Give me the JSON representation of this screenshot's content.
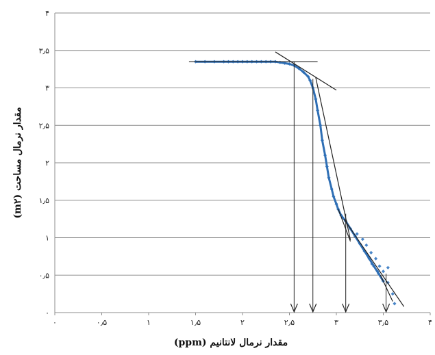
{
  "chart_data": {
    "type": "scatter",
    "xlabel": "مقدار نرمال لانتانیم (ppm)",
    "ylabel": "مقدار نرمال مساحت (m۲)",
    "xlim": [
      0,
      4
    ],
    "ylim": [
      0,
      4
    ],
    "x_ticks": [
      {
        "v": 0,
        "t": "۰"
      },
      {
        "v": 0.5,
        "t": "۰٫۵"
      },
      {
        "v": 1,
        "t": "۱"
      },
      {
        "v": 1.5,
        "t": "۱٫۵"
      },
      {
        "v": 2,
        "t": "۲"
      },
      {
        "v": 2.5,
        "t": "۲٫۵"
      },
      {
        "v": 3,
        "t": "۳"
      },
      {
        "v": 3.5,
        "t": "۳٫۵"
      },
      {
        "v": 4,
        "t": "۴"
      }
    ],
    "y_ticks": [
      {
        "v": 0,
        "t": "۰"
      },
      {
        "v": 0.5,
        "t": "۰٫۵"
      },
      {
        "v": 1,
        "t": "۱"
      },
      {
        "v": 1.5,
        "t": "۱٫۵"
      },
      {
        "v": 2,
        "t": "۲"
      },
      {
        "v": 2.5,
        "t": "۲٫۵"
      },
      {
        "v": 3,
        "t": "۳"
      },
      {
        "v": 3.5,
        "t": "۳٫۵"
      },
      {
        "v": 4,
        "t": "۴"
      }
    ],
    "grid": "horizontal",
    "marker_color": "#4a86c8",
    "curve_color": "#2f6fb5",
    "series": [
      {
        "points": [
          [
            1.5,
            3.35
          ],
          [
            1.6,
            3.35
          ],
          [
            1.7,
            3.35
          ],
          [
            1.8,
            3.35
          ],
          [
            1.85,
            3.35
          ],
          [
            1.9,
            3.35
          ],
          [
            1.95,
            3.35
          ],
          [
            2.0,
            3.35
          ],
          [
            2.05,
            3.35
          ],
          [
            2.1,
            3.35
          ],
          [
            2.15,
            3.35
          ],
          [
            2.2,
            3.35
          ],
          [
            2.25,
            3.35
          ],
          [
            2.3,
            3.35
          ],
          [
            2.35,
            3.35
          ],
          [
            2.4,
            3.34
          ],
          [
            2.45,
            3.33
          ],
          [
            2.5,
            3.32
          ],
          [
            2.55,
            3.3
          ],
          [
            2.6,
            3.26
          ],
          [
            2.65,
            3.21
          ],
          [
            2.7,
            3.15
          ],
          [
            2.72,
            3.1
          ],
          [
            2.75,
            3.0
          ],
          [
            2.78,
            2.85
          ],
          [
            2.8,
            2.7
          ],
          [
            2.83,
            2.5
          ],
          [
            2.85,
            2.3
          ],
          [
            2.88,
            2.1
          ],
          [
            2.9,
            1.95
          ],
          [
            2.92,
            1.8
          ],
          [
            2.95,
            1.65
          ],
          [
            2.97,
            1.55
          ],
          [
            3.0,
            1.45
          ],
          [
            3.02,
            1.38
          ],
          [
            3.05,
            1.3
          ],
          [
            3.1,
            1.22
          ],
          [
            3.15,
            1.12
          ],
          [
            3.2,
            1.02
          ],
          [
            3.25,
            0.92
          ],
          [
            3.3,
            0.82
          ],
          [
            3.35,
            0.72
          ],
          [
            3.4,
            0.62
          ],
          [
            3.45,
            0.52
          ],
          [
            3.5,
            0.42
          ],
          [
            3.22,
            1.05
          ],
          [
            3.28,
            0.98
          ],
          [
            3.32,
            0.9
          ],
          [
            3.37,
            0.8
          ],
          [
            3.42,
            0.72
          ],
          [
            3.46,
            0.62
          ],
          [
            3.38,
            0.65
          ],
          [
            3.44,
            0.55
          ],
          [
            3.5,
            0.55
          ],
          [
            3.55,
            0.4
          ],
          [
            3.6,
            0.25
          ],
          [
            3.62,
            0.12
          ],
          [
            3.55,
            0.6
          ]
        ]
      }
    ],
    "tangent_lines": [
      {
        "x": [
          1.43,
          2.8
        ],
        "y": [
          3.35,
          3.35
        ]
      },
      {
        "x": [
          2.35,
          3.0
        ],
        "y": [
          3.48,
          2.97
        ]
      },
      {
        "x": [
          2.78,
          3.15
        ],
        "y": [
          3.14,
          0.97
        ]
      },
      {
        "x": [
          3.02,
          3.15
        ],
        "y": [
          1.38,
          0.95
        ]
      },
      {
        "x": [
          3.08,
          3.72
        ],
        "y": [
          1.25,
          0.08
        ]
      },
      {
        "x": [
          3.47,
          3.6
        ],
        "y": [
          0.5,
          0.15
        ]
      }
    ],
    "arrows": [
      {
        "x": 2.55,
        "y_from": 3.35
      },
      {
        "x": 2.75,
        "y_from": 3.12
      },
      {
        "x": 3.1,
        "y_from": 1.32
      },
      {
        "x": 3.53,
        "y_from": 0.52
      }
    ]
  }
}
